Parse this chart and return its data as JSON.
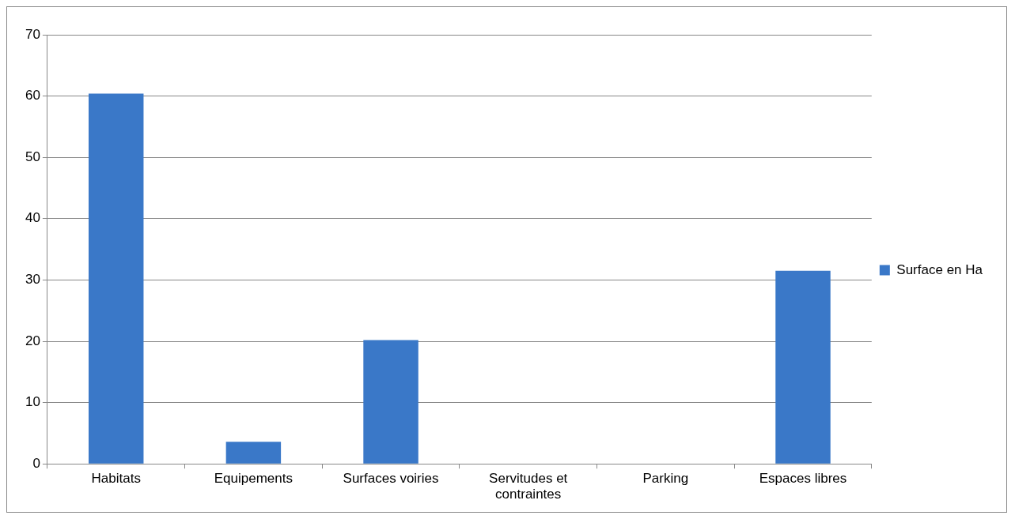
{
  "chart_data": {
    "type": "bar",
    "categories": [
      "Habitats",
      "Equipements",
      "Surfaces voiries",
      "Servitudes et contraintes",
      "Parking",
      "Espaces libres"
    ],
    "series": [
      {
        "name": "Surface en Ha",
        "color": "#3a78c8",
        "values": [
          60.4,
          3.6,
          20.2,
          0,
          0,
          31.5
        ]
      }
    ],
    "ylim": [
      0,
      70
    ],
    "yticks": [
      0,
      10,
      20,
      30,
      40,
      50,
      60,
      70
    ],
    "grid": "y",
    "legend": "right"
  }
}
